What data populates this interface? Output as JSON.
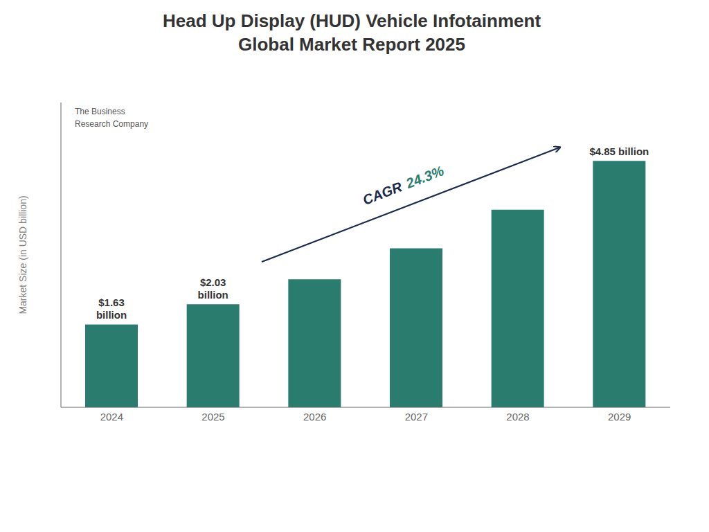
{
  "chart_data": {
    "type": "bar",
    "title": "Head Up Display (HUD) Vehicle Infotainment\nGlobal Market Report 2025",
    "categories": [
      "2024",
      "2025",
      "2026",
      "2027",
      "2028",
      "2029"
    ],
    "values": [
      1.63,
      2.03,
      2.52,
      3.13,
      3.89,
      4.85
    ],
    "value_labels": [
      "$1.63\nbillion",
      "$2.03\nbillion",
      null,
      null,
      null,
      "$4.85 billion"
    ],
    "color": "#2a7d6e",
    "ylabel": "Market Size (in USD billion)",
    "ylim": [
      0,
      6.0
    ],
    "yticks": [],
    "tick_labels": "x",
    "grid": false,
    "data_labels": true,
    "annotations": [
      {
        "text": "The Business\nResearch Company",
        "color": "#555555"
      },
      {
        "text": "CAGR",
        "color": "#1a2a4a"
      },
      {
        "text": "24.3%",
        "color": "#2a7d6e"
      }
    ]
  }
}
